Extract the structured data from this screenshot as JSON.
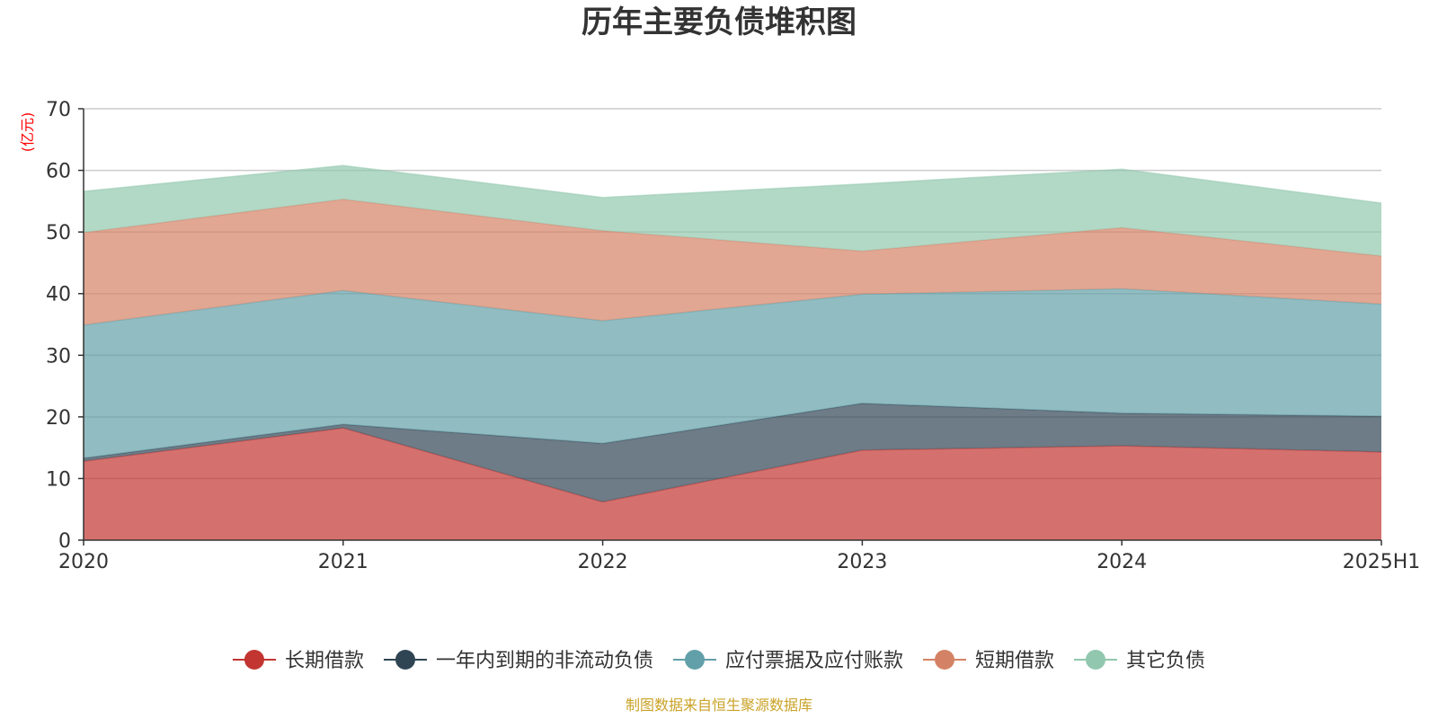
{
  "chart_data": {
    "type": "area",
    "stacked": true,
    "title": "历年主要负债堆积图",
    "unit_label": "(亿元)",
    "x": [
      "2020",
      "2021",
      "2022",
      "2023",
      "2024",
      "2025H1"
    ],
    "ylim": [
      0,
      70
    ],
    "yticks": [
      0,
      10,
      20,
      30,
      40,
      50,
      60,
      70
    ],
    "grid": true,
    "legend_position": "bottom",
    "series": [
      {
        "name": "长期借款",
        "color": "#c23531",
        "values": [
          12.8,
          18.2,
          6.2,
          14.6,
          15.3,
          14.3
        ]
      },
      {
        "name": "一年内到期的非流动负债",
        "color": "#2f4554",
        "values": [
          0.5,
          0.6,
          9.5,
          7.6,
          5.3,
          5.8
        ]
      },
      {
        "name": "应付票据及应付账款",
        "color": "#61a0a8",
        "values": [
          21.6,
          21.7,
          19.9,
          17.7,
          20.2,
          18.2
        ]
      },
      {
        "name": "短期借款",
        "color": "#d48265",
        "values": [
          15.0,
          14.8,
          14.6,
          7.0,
          9.9,
          7.8
        ]
      },
      {
        "name": "其它负债",
        "color": "#91c7ae",
        "values": [
          6.7,
          5.5,
          5.4,
          10.9,
          9.5,
          8.6
        ]
      }
    ],
    "source_note": "制图数据来自恒生聚源数据库",
    "source_color": "#c9a227",
    "unit_color": "#ff0000"
  }
}
